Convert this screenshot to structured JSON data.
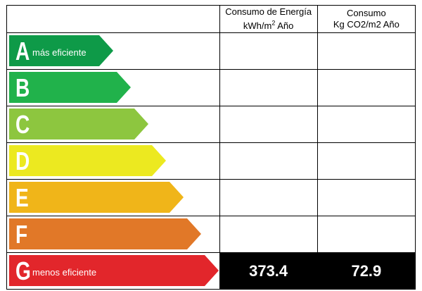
{
  "header": {
    "energy_line1": "Consumo de Energía",
    "energy_line2": "kWh/m",
    "energy_sup": "2",
    "energy_line2_suffix": " Año",
    "co2_line1": "Consumo",
    "co2_line2": "Kg CO2/m2 Año"
  },
  "ratings": [
    {
      "letter": "A",
      "sublabel": "más eficiente",
      "color": "#0e9a48",
      "energy": "",
      "co2": ""
    },
    {
      "letter": "B",
      "sublabel": "",
      "color": "#21b24b",
      "energy": "",
      "co2": ""
    },
    {
      "letter": "C",
      "sublabel": "",
      "color": "#8dc63f",
      "energy": "",
      "co2": ""
    },
    {
      "letter": "D",
      "sublabel": "",
      "color": "#ece920",
      "energy": "",
      "co2": ""
    },
    {
      "letter": "E",
      "sublabel": "",
      "color": "#f0b519",
      "energy": "",
      "co2": ""
    },
    {
      "letter": "F",
      "sublabel": "",
      "color": "#e17828",
      "energy": "",
      "co2": ""
    },
    {
      "letter": "G",
      "sublabel": "menos eficiente",
      "color": "#e2262b",
      "energy": "373.4",
      "co2": "72.9"
    }
  ],
  "active_rating": "G"
}
